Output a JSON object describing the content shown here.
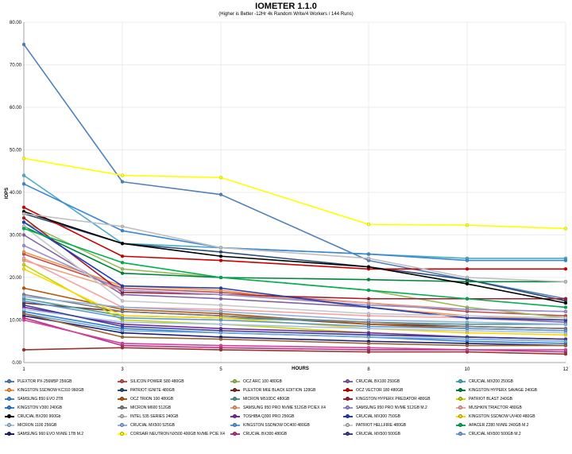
{
  "chart_data": {
    "type": "line",
    "title": "IOMETER 1.1.0",
    "subtitle": "(Higher is Better -12Hr 4k Random Write/4 Workers / 144 Runs)",
    "xlabel": "HOURS",
    "ylabel": "IOPS",
    "x": [
      1,
      3,
      5,
      8,
      10,
      12
    ],
    "x_tick_labels": [
      "1",
      "3",
      "5",
      "8",
      "10",
      "12"
    ],
    "ylim": [
      0,
      80
    ],
    "y_tick_labels": [
      "0.00",
      "10.00",
      "20.00",
      "30.00",
      "40.00",
      "50.00",
      "60.00",
      "70.00",
      "80.00"
    ],
    "grid": true,
    "legend_position": "bottom",
    "series": [
      {
        "name": "PLEXTOR PX-256M5P 256GB",
        "color": "#4f81bd",
        "values": [
          74.8,
          42.5,
          39.5,
          24.0,
          19.5,
          15.0
        ]
      },
      {
        "name": "SILICON POWER S80 480GB",
        "color": "#c0504d",
        "values": [
          25.5,
          17.5,
          16.5,
          14.0,
          12.0,
          11.0
        ]
      },
      {
        "name": "OCZ ARC 100 480GB",
        "color": "#9bbb59",
        "values": [
          33.0,
          22.0,
          20.0,
          17.0,
          13.0,
          10.5
        ]
      },
      {
        "name": "CRUCIAL BX100 250GB",
        "color": "#8064a2",
        "values": [
          30.0,
          16.0,
          15.0,
          13.0,
          10.5,
          9.5
        ]
      },
      {
        "name": "CRUCIAL MX200 250GB",
        "color": "#4bacc6",
        "values": [
          44.0,
          28.0,
          27.0,
          25.5,
          24.5,
          24.5
        ]
      },
      {
        "name": "KINGSTON SSDNOW KC310 960GB",
        "color": "#f79646",
        "values": [
          26.0,
          18.0,
          17.0,
          13.0,
          11.0,
          10.0
        ]
      },
      {
        "name": "PATRIOT IGNITE 480GB",
        "color": "#2c4d75",
        "values": [
          35.0,
          28.0,
          26.0,
          22.5,
          19.5,
          14.5
        ]
      },
      {
        "name": "PLEXTOR M6E BLACK EDITION 128GB",
        "color": "#772c2a",
        "values": [
          14.0,
          12.0,
          11.0,
          9.0,
          8.5,
          8.0
        ]
      },
      {
        "name": "OCZ VECTOR 180 480GB",
        "color": "#cc0000",
        "values": [
          36.5,
          25.0,
          24.0,
          22.0,
          22.0,
          22.0
        ]
      },
      {
        "name": "KINGSTON HYPERX SAVAGE 240GB",
        "color": "#00843d",
        "values": [
          32.0,
          21.0,
          20.0,
          19.5,
          19.0,
          19.0
        ]
      },
      {
        "name": "SAMSUNG 850 EVO 2TB",
        "color": "#3a87d6",
        "values": [
          42.0,
          31.0,
          27.0,
          25.5,
          24.0,
          24.0
        ]
      },
      {
        "name": "OCZ TRION 100 480GB",
        "color": "#b65708",
        "values": [
          17.5,
          12.5,
          11.5,
          9.0,
          8.0,
          7.5
        ]
      },
      {
        "name": "MICRON M510DC 480GB",
        "color": "#4e9a94",
        "values": [
          15.0,
          11.0,
          10.5,
          9.5,
          9.0,
          9.0
        ]
      },
      {
        "name": "KINGSTON HYPERX PREDATOR 480GB",
        "color": "#a6192e",
        "values": [
          34.0,
          16.5,
          16.0,
          15.0,
          15.0,
          15.0
        ]
      },
      {
        "name": "PATRIOT BLAST 240GB",
        "color": "#c4d600",
        "values": [
          23.0,
          10.0,
          9.0,
          7.0,
          6.0,
          5.5
        ]
      },
      {
        "name": "KINGSTON V300 240GB",
        "color": "#2f7ed8",
        "values": [
          12.0,
          8.0,
          7.0,
          6.0,
          5.0,
          4.5
        ]
      },
      {
        "name": "MICRON M600 512GB",
        "color": "#7f7f7f",
        "values": [
          16.0,
          12.0,
          11.0,
          9.5,
          8.5,
          8.0
        ]
      },
      {
        "name": "SAMSUNG 950 PRO NVME 512GB PCIEX X4",
        "color": "#e8a27c",
        "values": [
          24.0,
          17.0,
          16.0,
          14.0,
          12.5,
          12.0
        ]
      },
      {
        "name": "SAMSUNG 950 PRO NVME 512GB M.2",
        "color": "#9a8fd0",
        "values": [
          27.5,
          17.0,
          16.0,
          13.5,
          12.5,
          12.0
        ]
      },
      {
        "name": "MUSHKIN TRIACTOR 480GB",
        "color": "#f5a3a3",
        "values": [
          24.5,
          13.0,
          12.5,
          11.0,
          10.5,
          10.0
        ]
      },
      {
        "name": "CRUCIAL BX200 960Gb",
        "color": "#000000",
        "values": [
          35.5,
          28.0,
          25.0,
          22.5,
          18.5,
          14.0
        ]
      },
      {
        "name": "INTEL 535 SERIES 240GB",
        "color": "#bfbfbf",
        "values": [
          35.0,
          32.0,
          27.0,
          24.5,
          20.0,
          19.0
        ]
      },
      {
        "name": "TOSHIBA Q300 PRO 256GB",
        "color": "#7030a0",
        "values": [
          13.0,
          9.0,
          8.0,
          7.0,
          6.0,
          5.5
        ]
      },
      {
        "name": "CRUCIAL MX300 750GB",
        "color": "#1f3fbf",
        "values": [
          33.0,
          18.0,
          17.5,
          13.0,
          10.5,
          10.0
        ]
      },
      {
        "name": "KINGSTON SSDNOW UV400 480GB",
        "color": "#ffd700",
        "values": [
          22.0,
          11.0,
          10.5,
          8.0,
          7.0,
          6.5
        ]
      },
      {
        "name": "MICRON 1100 256GB",
        "color": "#a9c4eb",
        "values": [
          12.5,
          9.5,
          9.0,
          8.0,
          7.5,
          7.0
        ]
      },
      {
        "name": "CRUCIAL MX500 525GB",
        "color": "#8db3e2",
        "values": [
          15.5,
          13.0,
          12.0,
          10.0,
          9.5,
          9.0
        ]
      },
      {
        "name": "KINGSTON SSDNOW DC400 480GB",
        "color": "#5b9bd5",
        "values": [
          14.5,
          10.5,
          10.0,
          8.5,
          8.0,
          7.5
        ]
      },
      {
        "name": "PATRIOT HELLFIRE 480GB",
        "color": "#c9c9c9",
        "values": [
          32.0,
          14.5,
          13.5,
          11.5,
          11.0,
          10.5
        ]
      },
      {
        "name": "APACER Z280 NVME 240GB M.2",
        "color": "#00b050",
        "values": [
          31.5,
          23.5,
          20.0,
          17.0,
          15.0,
          13.0
        ]
      },
      {
        "name": "SAMSUNG 960 EVO NVME 1TB M.2",
        "color": "#1f1f7a",
        "values": [
          11.0,
          7.0,
          6.0,
          5.0,
          4.5,
          4.0
        ]
      },
      {
        "name": "CORSAIR NEUTRON NX500 400GB NVME PCIE X4",
        "color": "#ffff00",
        "values": [
          48.0,
          44.0,
          43.5,
          32.5,
          32.3,
          31.5
        ]
      },
      {
        "name": "CRUCIAL BX300 480GB",
        "color": "#b83285",
        "values": [
          10.5,
          4.0,
          3.5,
          3.0,
          3.0,
          2.5
        ]
      },
      {
        "name": "CRUCIAL MX500 500GB",
        "color": "#3b3b98",
        "values": [
          13.5,
          8.5,
          7.5,
          6.5,
          6.0,
          5.5
        ]
      },
      {
        "name": "CRUCIAL MX500 500GB M.2",
        "color": "#6fa8dc",
        "values": [
          11.5,
          7.5,
          7.0,
          6.0,
          5.5,
          5.0
        ]
      },
      {
        "name": "",
        "color": "#993333",
        "values": [
          3.0,
          3.5,
          3.0,
          2.5,
          2.5,
          2.0
        ]
      },
      {
        "name": "",
        "color": "#d6409f",
        "values": [
          10.0,
          4.5,
          4.0,
          3.5,
          3.0,
          3.0
        ]
      },
      {
        "name": "",
        "color": "#996633",
        "values": [
          11.5,
          6.0,
          5.5,
          4.5,
          4.0,
          4.0
        ]
      }
    ]
  }
}
